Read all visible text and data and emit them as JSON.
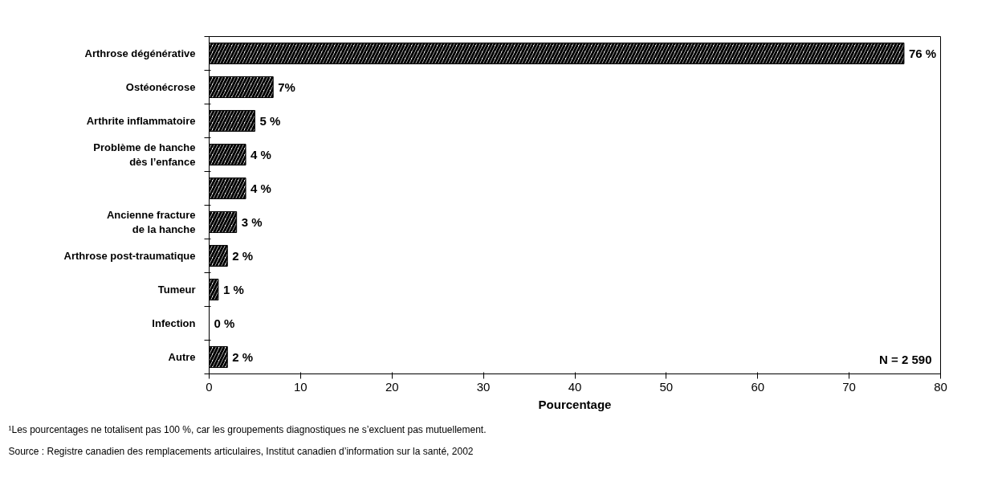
{
  "chart_data": {
    "type": "bar",
    "orientation": "horizontal",
    "xlabel": "Pourcentage",
    "categories": [
      "Arthrose dégénérative",
      "Ostéonécrose",
      "Arthrite inflammatoire",
      "Problème de hanche\ndès l’enfance",
      null,
      "Ancienne fracture\nde la hanche",
      "Arthrose post-traumatique",
      "Tumeur",
      "Infection",
      "Autre"
    ],
    "values": [
      76,
      7,
      5,
      4,
      4,
      3,
      2,
      1,
      0,
      2
    ],
    "value_labels": [
      "76 %",
      "7%",
      "5 %",
      "4 %",
      "4 %",
      "3 %",
      "2 %",
      "1 %",
      "0 %",
      "2 %"
    ],
    "color": "#000000",
    "xlim": [
      0,
      80
    ],
    "xticks": [
      0,
      10,
      20,
      30,
      40,
      50,
      60,
      70,
      80
    ],
    "grid": false,
    "annotations": [
      "N = 2 590",
      "¹Les pourcentages ne totalisent pas 100 %, car les groupements diagnostiques ne s’excluent pas mutuellement.",
      "Source : Registre canadien des remplacements articulaires, Institut canadien d’information sur la santé, 2002"
    ]
  }
}
